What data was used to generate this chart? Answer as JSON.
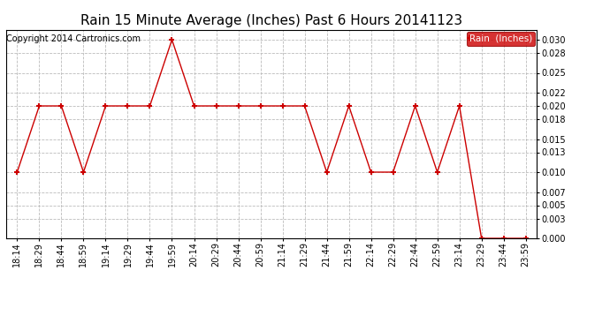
{
  "title": "Rain 15 Minute Average (Inches) Past 6 Hours 20141123",
  "copyright": "Copyright 2014 Cartronics.com",
  "legend_label": "Rain  (Inches)",
  "x_labels": [
    "18:14",
    "18:29",
    "18:44",
    "18:59",
    "19:14",
    "19:29",
    "19:44",
    "19:59",
    "20:14",
    "20:29",
    "20:44",
    "20:59",
    "21:14",
    "21:29",
    "21:44",
    "21:59",
    "22:14",
    "22:29",
    "22:44",
    "22:59",
    "23:14",
    "23:29",
    "23:44",
    "23:59"
  ],
  "y_values": [
    0.01,
    0.02,
    0.02,
    0.01,
    0.02,
    0.02,
    0.02,
    0.03,
    0.02,
    0.02,
    0.02,
    0.02,
    0.02,
    0.02,
    0.01,
    0.02,
    0.01,
    0.01,
    0.02,
    0.01,
    0.02,
    0.0,
    0.0,
    0.0
  ],
  "line_color": "#cc0000",
  "marker": "+",
  "marker_size": 5,
  "marker_edge_width": 1.5,
  "line_width": 1.0,
  "background_color": "#ffffff",
  "grid_color": "#bbbbbb",
  "ylim": [
    0.0,
    0.0315
  ],
  "yticks": [
    0.0,
    0.003,
    0.005,
    0.007,
    0.01,
    0.013,
    0.015,
    0.018,
    0.02,
    0.022,
    0.025,
    0.028,
    0.03
  ],
  "title_fontsize": 11,
  "tick_fontsize": 7,
  "copyright_fontsize": 7,
  "legend_bg": "#cc0000",
  "legend_text_color": "#ffffff",
  "legend_fontsize": 7.5
}
